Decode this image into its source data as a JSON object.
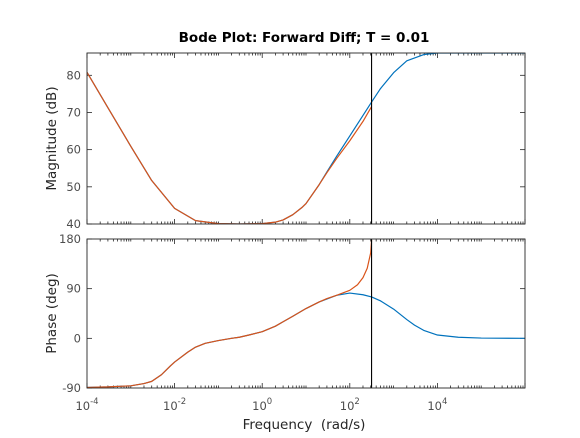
{
  "chart_data": {
    "type": "line",
    "title": "Bode Plot: Forward Diff; T = 0.01",
    "xlabel": "Frequency  (rad/s)",
    "x_scale": "log",
    "xlim": [
      0.0001,
      1000000
    ],
    "x_ticks": [
      0.0001,
      0.01,
      1,
      100,
      10000
    ],
    "x_tick_labels": [
      {
        "base": "10",
        "exp": "-4"
      },
      {
        "base": "10",
        "exp": "-2"
      },
      {
        "base": "10",
        "exp": "0"
      },
      {
        "base": "10",
        "exp": "2"
      },
      {
        "base": "10",
        "exp": "4"
      }
    ],
    "vertical_line_x": 314,
    "colors": {
      "blue": "#0072bd",
      "orange": "#d95319",
      "marker": "#000000",
      "axis": "#262626"
    },
    "panels": [
      {
        "ylabel": "Magnitude (dB)",
        "ylim": [
          40,
          86
        ],
        "y_ticks": [
          40,
          50,
          60,
          70,
          80
        ],
        "y_tick_labels": [
          "40",
          "50",
          "60",
          "70",
          "80"
        ],
        "series": [
          {
            "color": "#0072bd",
            "points": [
              [
                0.0001,
                80.8
              ],
              [
                0.0003,
                71.3
              ],
              [
                0.001,
                60.9
              ],
              [
                0.003,
                51.7
              ],
              [
                0.01,
                44.2
              ],
              [
                0.03,
                40.9
              ],
              [
                0.1,
                40.1
              ],
              [
                0.3,
                40.0
              ],
              [
                1,
                40.1
              ],
              [
                2,
                40.5
              ],
              [
                3,
                41.1
              ],
              [
                5,
                42.5
              ],
              [
                8,
                44.4
              ],
              [
                10,
                45.5
              ],
              [
                20,
                50.6
              ],
              [
                30,
                54.0
              ],
              [
                50,
                58.2
              ],
              [
                100,
                63.7
              ],
              [
                200,
                69.2
              ],
              [
                314,
                72.8
              ],
              [
                500,
                76.4
              ],
              [
                1000,
                80.7
              ],
              [
                2000,
                83.9
              ],
              [
                5000,
                85.6
              ],
              [
                10000,
                86.0
              ],
              [
                100000,
                86.0
              ],
              [
                1000000,
                86.0
              ]
            ]
          },
          {
            "color": "#d95319",
            "points": [
              [
                0.0001,
                80.8
              ],
              [
                0.0003,
                71.3
              ],
              [
                0.001,
                60.9
              ],
              [
                0.003,
                51.7
              ],
              [
                0.01,
                44.2
              ],
              [
                0.03,
                40.9
              ],
              [
                0.1,
                40.1
              ],
              [
                0.3,
                40.0
              ],
              [
                1,
                40.1
              ],
              [
                2,
                40.5
              ],
              [
                3,
                41.1
              ],
              [
                5,
                42.5
              ],
              [
                8,
                44.4
              ],
              [
                10,
                45.5
              ],
              [
                20,
                50.6
              ],
              [
                30,
                53.8
              ],
              [
                50,
                57.6
              ],
              [
                100,
                62.4
              ],
              [
                200,
                67.6
              ],
              [
                314,
                71.6
              ]
            ]
          }
        ]
      },
      {
        "ylabel": "Phase (deg)",
        "ylim": [
          -90,
          180
        ],
        "y_ticks": [
          -90,
          0,
          90,
          180
        ],
        "y_tick_labels": [
          "-90",
          "0",
          "90",
          "180"
        ],
        "series": [
          {
            "color": "#0072bd",
            "points": [
              [
                0.0001,
                -89
              ],
              [
                0.0003,
                -88
              ],
              [
                0.001,
                -86
              ],
              [
                0.002,
                -82
              ],
              [
                0.003,
                -78
              ],
              [
                0.005,
                -66
              ],
              [
                0.008,
                -50
              ],
              [
                0.01,
                -43
              ],
              [
                0.02,
                -25
              ],
              [
                0.03,
                -16
              ],
              [
                0.05,
                -9
              ],
              [
                0.1,
                -4
              ],
              [
                0.2,
                0
              ],
              [
                0.3,
                2
              ],
              [
                0.5,
                6
              ],
              [
                1,
                12
              ],
              [
                2,
                22
              ],
              [
                3,
                30
              ],
              [
                5,
                40
              ],
              [
                10,
                54
              ],
              [
                20,
                66
              ],
              [
                50,
                78
              ],
              [
                100,
                82
              ],
              [
                200,
                79
              ],
              [
                314,
                75
              ],
              [
                500,
                68
              ],
              [
                1000,
                53
              ],
              [
                2000,
                34
              ],
              [
                3000,
                24
              ],
              [
                5000,
                14
              ],
              [
                10000,
                6
              ],
              [
                30000,
                2
              ],
              [
                100000,
                0.5
              ],
              [
                1000000,
                0
              ]
            ]
          },
          {
            "color": "#d95319",
            "points": [
              [
                0.0001,
                -89
              ],
              [
                0.0003,
                -88
              ],
              [
                0.001,
                -86
              ],
              [
                0.002,
                -82
              ],
              [
                0.003,
                -78
              ],
              [
                0.005,
                -66
              ],
              [
                0.008,
                -50
              ],
              [
                0.01,
                -43
              ],
              [
                0.02,
                -25
              ],
              [
                0.03,
                -16
              ],
              [
                0.05,
                -9
              ],
              [
                0.1,
                -4
              ],
              [
                0.2,
                0
              ],
              [
                0.3,
                2
              ],
              [
                0.5,
                6
              ],
              [
                1,
                12
              ],
              [
                2,
                22
              ],
              [
                3,
                30
              ],
              [
                5,
                40
              ],
              [
                10,
                54
              ],
              [
                20,
                66
              ],
              [
                30,
                72
              ],
              [
                50,
                78
              ],
              [
                100,
                87
              ],
              [
                150,
                97
              ],
              [
                200,
                110
              ],
              [
                250,
                127
              ],
              [
                300,
                155
              ],
              [
                314,
                178
              ]
            ]
          }
        ]
      }
    ]
  }
}
